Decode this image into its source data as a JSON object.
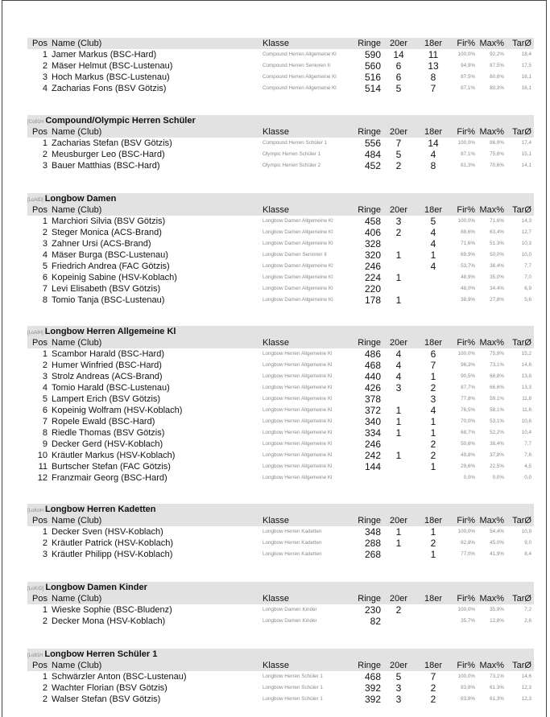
{
  "columns": {
    "pos": "Pos",
    "name": "Name (Club)",
    "klasse": "Klasse",
    "ringe": "Ringe",
    "z20": "20er",
    "z18": "18er",
    "fir": "Fir%",
    "max": "Max%",
    "tar": "TarØ"
  },
  "sections": [
    {
      "code": "",
      "title": "",
      "rows": [
        {
          "pos": "1",
          "name": "Jamer Markus  (BSC-Hard)",
          "klasse": "Compound Herren Allgemeine Kl",
          "ringe": "590",
          "z20": "14",
          "z18": "11",
          "fir": "100,0%",
          "max": "92,2%",
          "tar": "18,4"
        },
        {
          "pos": "2",
          "name": "Mäser Helmut  (BSC-Lustenau)",
          "klasse": "Compound Herren Senioren II",
          "ringe": "560",
          "z20": "6",
          "z18": "13",
          "fir": "94,9%",
          "max": "87,5%",
          "tar": "17,5"
        },
        {
          "pos": "3",
          "name": "Hoch Markus  (BSC-Lustenau)",
          "klasse": "Compound Herren Allgemeine Kl",
          "ringe": "516",
          "z20": "6",
          "z18": "8",
          "fir": "87,5%",
          "max": "80,6%",
          "tar": "16,1"
        },
        {
          "pos": "4",
          "name": "Zacharias Fons  (BSV Götzis)",
          "klasse": "Compound Herren Allgemeine Kl",
          "ringe": "514",
          "z20": "5",
          "z18": "7",
          "fir": "87,1%",
          "max": "80,3%",
          "tar": "16,1"
        }
      ]
    },
    {
      "code": "[Co81H",
      "title": "Compound/Olympic Herren Schüler",
      "rows": [
        {
          "pos": "1",
          "name": "Zacharias Stefan  (BSV Götzis)",
          "klasse": "Compound Herren Schüler 1",
          "ringe": "556",
          "z20": "7",
          "z18": "14",
          "fir": "100,0%",
          "max": "86,9%",
          "tar": "17,4"
        },
        {
          "pos": "2",
          "name": "Meusburger Leo  (BSC-Hard)",
          "klasse": "Olympic Herren Schüler 1",
          "ringe": "484",
          "z20": "5",
          "z18": "4",
          "fir": "87,1%",
          "max": "75,6%",
          "tar": "15,1"
        },
        {
          "pos": "3",
          "name": "Bauer Matthias  (BSC-Hard)",
          "klasse": "Olympic Herren Schüler 2",
          "ringe": "452",
          "z20": "2",
          "z18": "8",
          "fir": "81,3%",
          "max": "70,6%",
          "tar": "14,1"
        }
      ]
    },
    {
      "code": "[LoAlD]",
      "title": "Longbow Damen",
      "rows": [
        {
          "pos": "1",
          "name": "Marchiori Silvia  (BSV Götzis)",
          "klasse": "Longbow Damen Allgemeine Kl",
          "ringe": "458",
          "z20": "3",
          "z18": "5",
          "fir": "100,0%",
          "max": "71,6%",
          "tar": "14,3"
        },
        {
          "pos": "2",
          "name": "Steger Monica  (ACS-Brand)",
          "klasse": "Longbow Damen Allgemeine Kl",
          "ringe": "406",
          "z20": "2",
          "z18": "4",
          "fir": "88,6%",
          "max": "63,4%",
          "tar": "12,7"
        },
        {
          "pos": "3",
          "name": "Zahner Ursi  (ACS-Brand)",
          "klasse": "Longbow Damen Allgemeine Kl",
          "ringe": "328",
          "z20": "",
          "z18": "4",
          "fir": "71,6%",
          "max": "51,3%",
          "tar": "10,3"
        },
        {
          "pos": "4",
          "name": "Mäser Burga  (BSC-Lustenau)",
          "klasse": "Longbow Damen Senioren II",
          "ringe": "320",
          "z20": "1",
          "z18": "1",
          "fir": "69,9%",
          "max": "50,0%",
          "tar": "10,0"
        },
        {
          "pos": "5",
          "name": "Friedrich Andrea  (FAC Götzis)",
          "klasse": "Longbow Damen Allgemeine Kl",
          "ringe": "246",
          "z20": "",
          "z18": "4",
          "fir": "53,7%",
          "max": "38,4%",
          "tar": "7,7"
        },
        {
          "pos": "6",
          "name": "Kopeinig Sabine  (HSV-Koblach)",
          "klasse": "Longbow Damen Allgemeine Kl",
          "ringe": "224",
          "z20": "1",
          "z18": "",
          "fir": "48,9%",
          "max": "35,0%",
          "tar": "7,0"
        },
        {
          "pos": "7",
          "name": "Levi Elisabeth  (BSV Götzis)",
          "klasse": "Longbow Damen Allgemeine Kl",
          "ringe": "220",
          "z20": "",
          "z18": "",
          "fir": "48,0%",
          "max": "34,4%",
          "tar": "6,9"
        },
        {
          "pos": "8",
          "name": "Tomio Tanja  (BSC-Lustenau)",
          "klasse": "Longbow Damen Allgemeine Kl",
          "ringe": "178",
          "z20": "1",
          "z18": "",
          "fir": "38,9%",
          "max": "27,8%",
          "tar": "5,6"
        }
      ]
    },
    {
      "code": "[LoAlH]",
      "title": "Longbow Herren Allgemeine Kl",
      "rows": [
        {
          "pos": "1",
          "name": "Scambor Harald  (BSC-Hard)",
          "klasse": "Longbow Herren Allgemeine Kl",
          "ringe": "486",
          "z20": "4",
          "z18": "6",
          "fir": "100,0%",
          "max": "75,9%",
          "tar": "15,2"
        },
        {
          "pos": "2",
          "name": "Humer Winfried  (BSC-Hard)",
          "klasse": "Longbow Herren Allgemeine Kl",
          "ringe": "468",
          "z20": "4",
          "z18": "7",
          "fir": "96,3%",
          "max": "73,1%",
          "tar": "14,6"
        },
        {
          "pos": "3",
          "name": "Strolz Andreas  (ACS-Brand)",
          "klasse": "Longbow Herren Allgemeine Kl",
          "ringe": "440",
          "z20": "4",
          "z18": "1",
          "fir": "90,5%",
          "max": "68,8%",
          "tar": "13,8"
        },
        {
          "pos": "4",
          "name": "Tomio Harald  (BSC-Lustenau)",
          "klasse": "Longbow Herren Allgemeine Kl",
          "ringe": "426",
          "z20": "3",
          "z18": "2",
          "fir": "87,7%",
          "max": "66,6%",
          "tar": "13,3"
        },
        {
          "pos": "5",
          "name": "Lampert Erich  (BSV Götzis)",
          "klasse": "Longbow Herren Allgemeine Kl",
          "ringe": "378",
          "z20": "",
          "z18": "3",
          "fir": "77,8%",
          "max": "59,1%",
          "tar": "11,8"
        },
        {
          "pos": "6",
          "name": "Kopeinig Wolfram  (HSV-Koblach)",
          "klasse": "Longbow Herren Allgemeine Kl",
          "ringe": "372",
          "z20": "1",
          "z18": "4",
          "fir": "76,5%",
          "max": "58,1%",
          "tar": "11,6"
        },
        {
          "pos": "7",
          "name": "Ropele Ewald  (BSC-Hard)",
          "klasse": "Longbow Herren Allgemeine Kl",
          "ringe": "340",
          "z20": "1",
          "z18": "1",
          "fir": "70,0%",
          "max": "53,1%",
          "tar": "10,6"
        },
        {
          "pos": "8",
          "name": "Riedle Thomas  (BSV Götzis)",
          "klasse": "Longbow Herren Allgemeine Kl",
          "ringe": "334",
          "z20": "1",
          "z18": "1",
          "fir": "68,7%",
          "max": "52,2%",
          "tar": "10,4"
        },
        {
          "pos": "9",
          "name": "Decker Gerd  (HSV-Koblach)",
          "klasse": "Longbow Herren Allgemeine Kl",
          "ringe": "246",
          "z20": "",
          "z18": "2",
          "fir": "50,6%",
          "max": "38,4%",
          "tar": "7,7"
        },
        {
          "pos": "10",
          "name": "Kräutler Markus  (HSV-Koblach)",
          "klasse": "Longbow Herren Allgemeine Kl",
          "ringe": "242",
          "z20": "1",
          "z18": "2",
          "fir": "49,8%",
          "max": "37,8%",
          "tar": "7,6"
        },
        {
          "pos": "11",
          "name": "Burtscher Stefan  (FAC Götzis)",
          "klasse": "Longbow Herren Allgemeine Kl",
          "ringe": "144",
          "z20": "",
          "z18": "1",
          "fir": "29,6%",
          "max": "22,5%",
          "tar": "4,5"
        },
        {
          "pos": "12",
          "name": "Franzmair Georg  (BSC-Hard)",
          "klasse": "Longbow Herren Allgemeine Kl",
          "ringe": "",
          "z20": "",
          "z18": "",
          "fir": "0,0%",
          "max": "0,0%",
          "tar": "0,0"
        }
      ]
    },
    {
      "code": "[LoKnH",
      "title": "Longbow Herren Kadetten",
      "rows": [
        {
          "pos": "1",
          "name": "Decker Sven  (HSV-Koblach)",
          "klasse": "Longbow Herren Kadetten",
          "ringe": "348",
          "z20": "1",
          "z18": "1",
          "fir": "100,0%",
          "max": "54,4%",
          "tar": "10,9"
        },
        {
          "pos": "2",
          "name": "Kräutler Patrick  (HSV-Koblach)",
          "klasse": "Longbow Herren Kadetten",
          "ringe": "288",
          "z20": "1",
          "z18": "2",
          "fir": "82,8%",
          "max": "45,0%",
          "tar": "9,0"
        },
        {
          "pos": "3",
          "name": "Kräutler Philipp  (HSV-Koblach)",
          "klasse": "Longbow Herren Kadetten",
          "ringe": "268",
          "z20": "",
          "z18": "1",
          "fir": "77,0%",
          "max": "41,9%",
          "tar": "8,4"
        }
      ]
    },
    {
      "code": "[LoKrD]",
      "title": "Longbow Damen Kinder",
      "rows": [
        {
          "pos": "1",
          "name": "Wieske Sophie  (BSC-Bludenz)",
          "klasse": "Longbow Damen Kinder",
          "ringe": "230",
          "z20": "2",
          "z18": "",
          "fir": "100,0%",
          "max": "35,9%",
          "tar": "7,2"
        },
        {
          "pos": "2",
          "name": "Decker Mona  (HSV-Koblach)",
          "klasse": "Longbow Damen Kinder",
          "ringe": "82",
          "z20": "",
          "z18": "",
          "fir": "35,7%",
          "max": "12,8%",
          "tar": "2,6"
        }
      ]
    },
    {
      "code": "[Lo81H",
      "title": "Longbow Herren Schüler 1",
      "rows": [
        {
          "pos": "1",
          "name": "Schwärzler Anton  (BSC-Lustenau)",
          "klasse": "Longbow Herren Schüler 1",
          "ringe": "468",
          "z20": "5",
          "z18": "7",
          "fir": "100,0%",
          "max": "73,1%",
          "tar": "14,6"
        },
        {
          "pos": "2",
          "name": "Wachter Florian  (BSV Götzis)",
          "klasse": "Longbow Herren Schüler 1",
          "ringe": "392",
          "z20": "3",
          "z18": "2",
          "fir": "83,8%",
          "max": "61,3%",
          "tar": "12,3"
        },
        {
          "pos": "2",
          "name": "Walser Stefan  (BSV Götzis)",
          "klasse": "Longbow Herren Schüler 1",
          "ringe": "392",
          "z20": "3",
          "z18": "2",
          "fir": "83,8%",
          "max": "61,3%",
          "tar": "12,3"
        }
      ]
    }
  ]
}
